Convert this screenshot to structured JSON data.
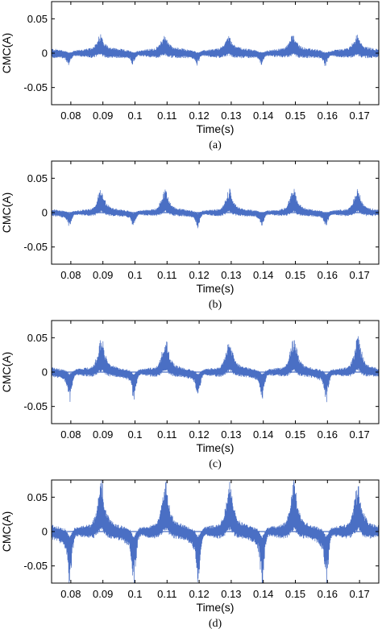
{
  "chart_data": [
    {
      "type": "line",
      "caption": "(a)",
      "xlabel": "Time(s)",
      "ylabel": "CMC(A)",
      "xlim": [
        0.074,
        0.176
      ],
      "ylim": [
        -0.075,
        0.075
      ],
      "xticks": [
        0.08,
        0.09,
        0.1,
        0.11,
        0.12,
        0.13,
        0.14,
        0.15,
        0.16,
        0.17
      ],
      "xtick_labels": [
        "0.08",
        "0.09",
        "0.1",
        "0.11",
        "0.12",
        "0.13",
        "0.14",
        "0.15",
        "0.16",
        "0.17"
      ],
      "yticks": [
        0.05,
        0,
        -0.05
      ],
      "ytick_labels": [
        "0.05",
        "0",
        "-0.05"
      ],
      "grid": false,
      "series": [
        {
          "color": "#4a6fc4",
          "period_s": 0.02,
          "positive_peaks": [
            {
              "x": 0.0895,
              "y": 0.022
            },
            {
              "x": 0.1095,
              "y": 0.021
            },
            {
              "x": 0.1295,
              "y": 0.021
            },
            {
              "x": 0.1495,
              "y": 0.022
            },
            {
              "x": 0.1695,
              "y": 0.02
            }
          ],
          "negative_peaks": [
            {
              "x": 0.0795,
              "y": -0.012
            },
            {
              "x": 0.0995,
              "y": -0.011
            },
            {
              "x": 0.1195,
              "y": -0.012
            },
            {
              "x": 0.1395,
              "y": -0.011
            },
            {
              "x": 0.1595,
              "y": -0.012
            }
          ],
          "baseline_amplitude": 0.008
        }
      ]
    },
    {
      "type": "line",
      "caption": "(b)",
      "xlabel": "Time(s)",
      "ylabel": "CMC(A)",
      "xlim": [
        0.074,
        0.176
      ],
      "ylim": [
        -0.075,
        0.075
      ],
      "xticks": [
        0.08,
        0.09,
        0.1,
        0.11,
        0.12,
        0.13,
        0.14,
        0.15,
        0.16,
        0.17
      ],
      "xtick_labels": [
        "0.08",
        "0.09",
        "0.1",
        "0.11",
        "0.12",
        "0.13",
        "0.14",
        "0.15",
        "0.16",
        "0.17"
      ],
      "yticks": [
        0.05,
        0,
        -0.05
      ],
      "ytick_labels": [
        "0.05",
        "0",
        "-0.05"
      ],
      "grid": false,
      "series": [
        {
          "color": "#4a6fc4",
          "period_s": 0.02,
          "positive_peaks": [
            {
              "x": 0.0897,
              "y": 0.032
            },
            {
              "x": 0.1097,
              "y": 0.032
            },
            {
              "x": 0.1297,
              "y": 0.032
            },
            {
              "x": 0.1497,
              "y": 0.032
            },
            {
              "x": 0.1697,
              "y": 0.032
            }
          ],
          "negative_peaks": [
            {
              "x": 0.0797,
              "y": -0.016
            },
            {
              "x": 0.0997,
              "y": -0.015
            },
            {
              "x": 0.1197,
              "y": -0.016
            },
            {
              "x": 0.1397,
              "y": -0.015
            },
            {
              "x": 0.1597,
              "y": -0.016
            }
          ],
          "baseline_amplitude": 0.006
        }
      ]
    },
    {
      "type": "line",
      "caption": "(c)",
      "xlabel": "Time(s)",
      "ylabel": "CMC(A)",
      "xlim": [
        0.074,
        0.176
      ],
      "ylim": [
        -0.075,
        0.075
      ],
      "xticks": [
        0.08,
        0.09,
        0.1,
        0.11,
        0.12,
        0.13,
        0.14,
        0.15,
        0.16,
        0.17
      ],
      "xtick_labels": [
        "0.08",
        "0.09",
        "0.1",
        "0.11",
        "0.12",
        "0.13",
        "0.14",
        "0.15",
        "0.16",
        "0.17"
      ],
      "yticks": [
        0.05,
        0,
        -0.05
      ],
      "ytick_labels": [
        "0.05",
        "0",
        "-0.05"
      ],
      "grid": false,
      "series": [
        {
          "color": "#4a6fc4",
          "period_s": 0.02,
          "positive_peaks": [
            {
              "x": 0.0898,
              "y": 0.046
            },
            {
              "x": 0.1098,
              "y": 0.046
            },
            {
              "x": 0.1298,
              "y": 0.046
            },
            {
              "x": 0.1498,
              "y": 0.046
            },
            {
              "x": 0.1698,
              "y": 0.048
            }
          ],
          "negative_peaks": [
            {
              "x": 0.0798,
              "y": -0.031
            },
            {
              "x": 0.0998,
              "y": -0.031
            },
            {
              "x": 0.1198,
              "y": -0.031
            },
            {
              "x": 0.1398,
              "y": -0.03
            },
            {
              "x": 0.1598,
              "y": -0.031
            }
          ],
          "baseline_amplitude": 0.008
        }
      ]
    },
    {
      "type": "line",
      "caption": "(d)",
      "xlabel": "Time(s)",
      "ylabel": "CMC(A)",
      "xlim": [
        0.074,
        0.176
      ],
      "ylim": [
        -0.075,
        0.075
      ],
      "xticks": [
        0.08,
        0.09,
        0.1,
        0.11,
        0.12,
        0.13,
        0.14,
        0.15,
        0.16,
        0.17
      ],
      "xtick_labels": [
        "0.08",
        "0.09",
        "0.1",
        "0.11",
        "0.12",
        "0.13",
        "0.14",
        "0.15",
        "0.16",
        "0.17"
      ],
      "yticks": [
        0.05,
        0,
        -0.05
      ],
      "ytick_labels": [
        "0.05",
        "0",
        "-0.05"
      ],
      "grid": false,
      "series": [
        {
          "color": "#4a6fc4",
          "period_s": 0.02,
          "positive_peaks": [
            {
              "x": 0.0898,
              "y": 0.068
            },
            {
              "x": 0.1098,
              "y": 0.068
            },
            {
              "x": 0.1298,
              "y": 0.068
            },
            {
              "x": 0.1498,
              "y": 0.068
            },
            {
              "x": 0.1698,
              "y": 0.068
            }
          ],
          "negative_peaks": [
            {
              "x": 0.0798,
              "y": -0.061
            },
            {
              "x": 0.0998,
              "y": -0.061
            },
            {
              "x": 0.1198,
              "y": -0.061
            },
            {
              "x": 0.1398,
              "y": -0.061
            },
            {
              "x": 0.1598,
              "y": -0.061
            }
          ],
          "baseline_amplitude": 0.012
        }
      ]
    }
  ]
}
